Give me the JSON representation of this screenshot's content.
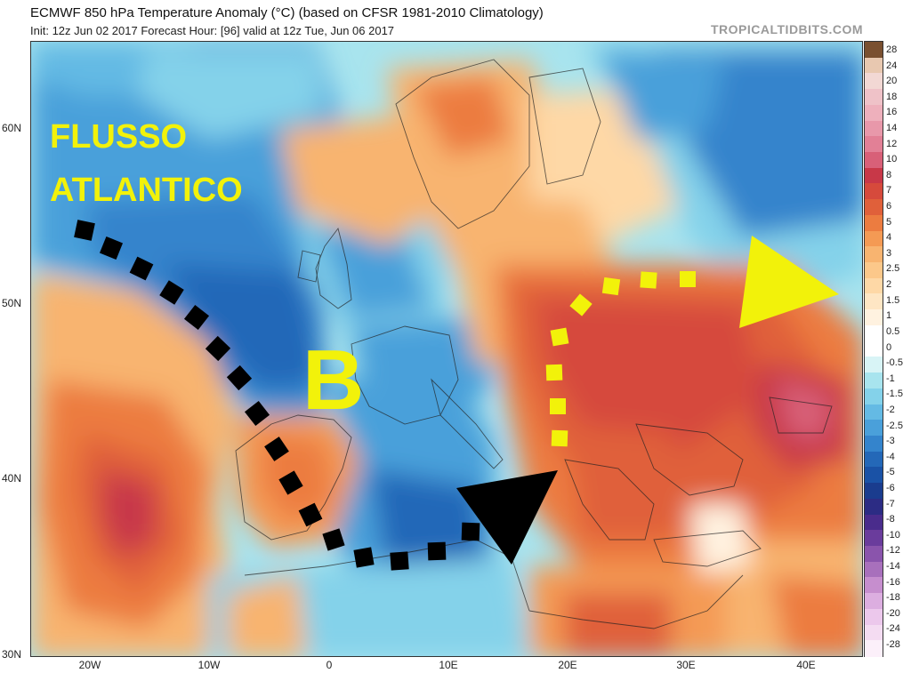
{
  "header": {
    "title": "ECMWF 850 hPa Temperature Anomaly (°C) (based on CFSR 1981-2010 Climatology)",
    "subtitle": "Init: 12z Jun 02 2017   Forecast Hour: [96]   valid at 12z Tue, Jun 06 2017",
    "brand": "TROPICALTIDBITS.COM"
  },
  "map": {
    "lat_labels": [
      "60N",
      "50N",
      "40N",
      "30N"
    ],
    "lon_labels": [
      "20W",
      "10W",
      "0",
      "10E",
      "20E",
      "30E",
      "40E"
    ]
  },
  "annotations": {
    "flusso": "FLUSSO",
    "atlantico": "ATLANTICO",
    "low_letter": "B",
    "colors": {
      "yellow": "#f2f20a",
      "black": "#000000"
    }
  },
  "colorbar": {
    "labels": [
      "28",
      "24",
      "20",
      "18",
      "16",
      "14",
      "12",
      "10",
      "8",
      "7",
      "6",
      "5",
      "4",
      "3",
      "2.5",
      "2",
      "1.5",
      "1",
      "0.5",
      "0",
      "-0.5",
      "-1",
      "-1.5",
      "-2",
      "-2.5",
      "-3",
      "-4",
      "-5",
      "-6",
      "-7",
      "-8",
      "-10",
      "-12",
      "-14",
      "-16",
      "-18",
      "-20",
      "-24",
      "-28"
    ],
    "colors": [
      "#7a5030",
      "#e8c8b0",
      "#f2d8d4",
      "#efc2c8",
      "#eeb0bc",
      "#e898aa",
      "#e28096",
      "#d86078",
      "#c83848",
      "#d64a3c",
      "#e0603a",
      "#ec7c40",
      "#f49a54",
      "#f8b470",
      "#fcc88a",
      "#fed8a6",
      "#fee6c4",
      "#fff2e0",
      "#ffffff",
      "#ffffff",
      "#d8f4f6",
      "#a8e4ee",
      "#84d2ea",
      "#64bae4",
      "#4aa0da",
      "#3484cc",
      "#2468b8",
      "#1a52a6",
      "#1a3c8e",
      "#2c2c84",
      "#4a2c8c",
      "#6a3c9c",
      "#8a54ac",
      "#a870bc",
      "#c68ece",
      "#dcaee0",
      "#ecc8ec",
      "#f4dcf2",
      "#fcf0fa"
    ]
  }
}
